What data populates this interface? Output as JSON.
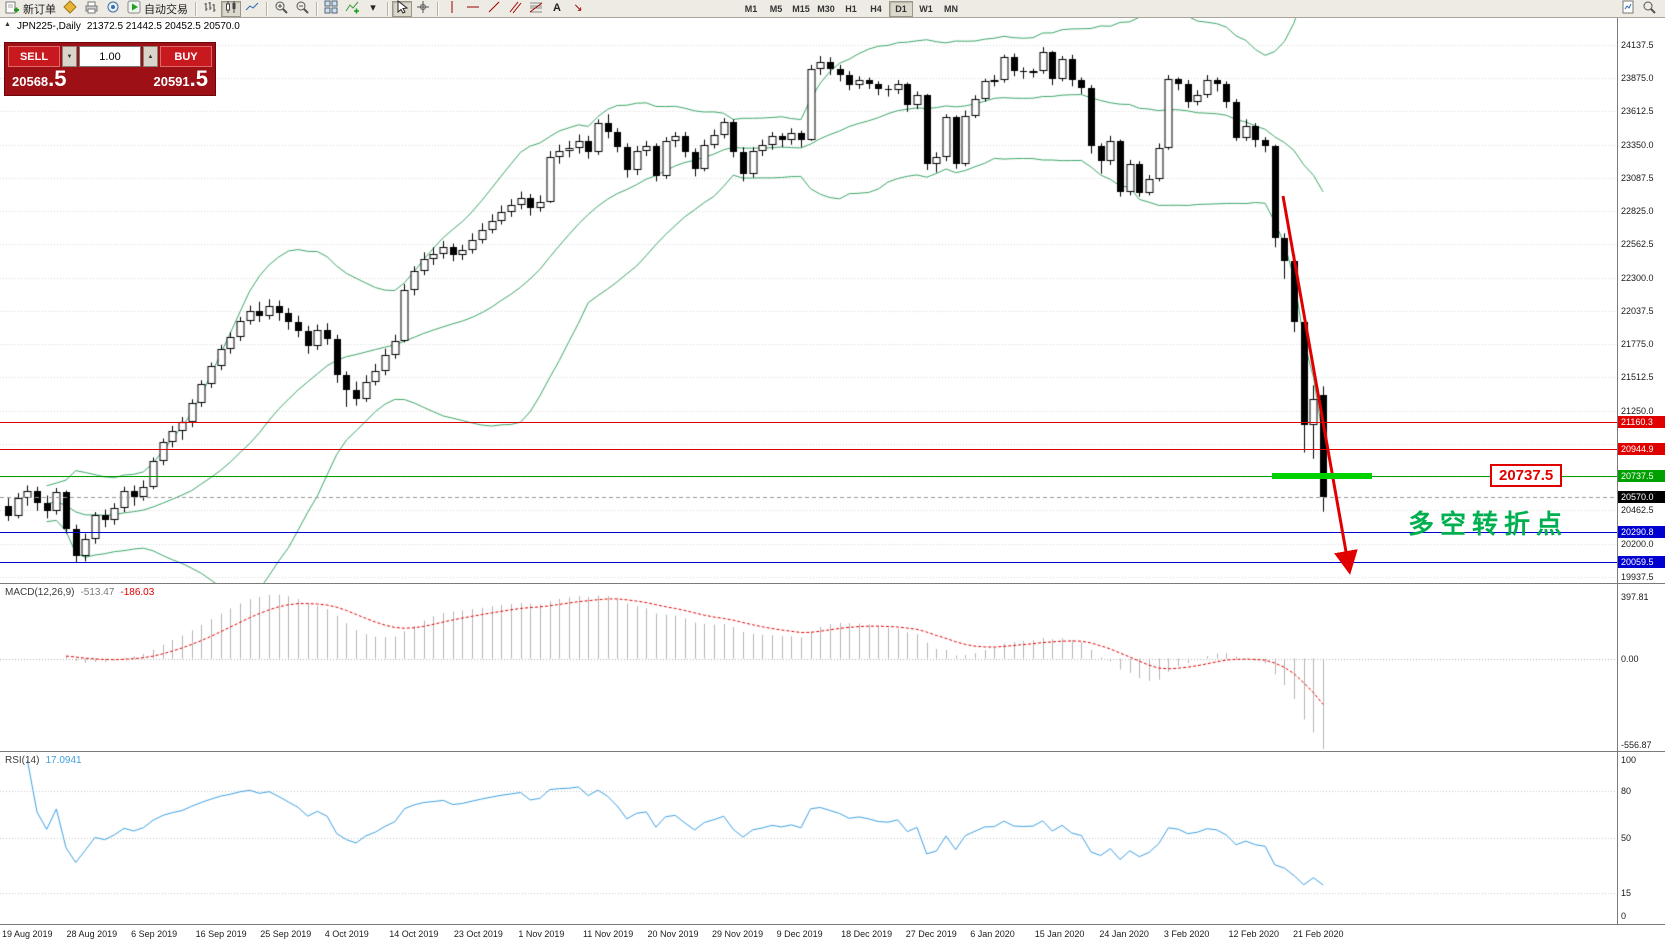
{
  "toolbar": {
    "new_order_label": "新订单",
    "autotrading_label": "自动交易",
    "timeframes": [
      "M1",
      "M5",
      "M15",
      "M30",
      "H1",
      "H4",
      "D1",
      "W1",
      "MN"
    ],
    "active_timeframe": "D1"
  },
  "trade_panel": {
    "sell_label": "SELL",
    "buy_label": "BUY",
    "volume": "1.00",
    "sell_price_main": "20568",
    "sell_price_frac": ".5",
    "buy_price_main": "20591",
    "buy_price_frac": ".5"
  },
  "chart": {
    "symbol_label": "JPN225-,Daily",
    "ohlc_label": "21372.5 21442.5 20452.5 20570.0",
    "current_price": "20570.0",
    "price_tag_label": "20737.5",
    "pivot_price": 20737.5,
    "annotation": "多空转折点",
    "scale_labels": [
      "24137.5",
      "23875.0",
      "23612.5",
      "23350.0",
      "23087.5",
      "22825.0",
      "22562.5",
      "22300.0",
      "22037.5",
      "21775.0",
      "21512.5",
      "21250.0",
      "20462.5",
      "20200.0",
      "19937.5"
    ],
    "level_tags": [
      {
        "label": "21160.3",
        "price": 21160.3,
        "color": "#e00000"
      },
      {
        "label": "20944.9",
        "price": 20944.9,
        "color": "#e00000"
      },
      {
        "label": "20737.5",
        "price": 20737.5,
        "color": "#00a000"
      },
      {
        "label": "20570.0",
        "price": 20570.0,
        "color": "#000000"
      },
      {
        "label": "20290.8",
        "price": 20290.8,
        "color": "#0000d0"
      },
      {
        "label": "20059.5",
        "price": 20059.5,
        "color": "#0000d0"
      }
    ],
    "hlines": [
      {
        "price": 21160.3,
        "color": "#e00000"
      },
      {
        "price": 20944.9,
        "color": "#e00000"
      },
      {
        "price": 20737.5,
        "color": "#00a000"
      },
      {
        "price": 20290.8,
        "color": "#0000d0"
      },
      {
        "price": 20059.5,
        "color": "#0000d0"
      }
    ]
  },
  "macd": {
    "label": "MACD(12,26,9)",
    "value_main": "-513.47",
    "value_signal": "-186.03",
    "scale": [
      "397.81",
      "0.00",
      "-556.87"
    ]
  },
  "rsi": {
    "label": "RSI(14)",
    "value": "17.0941",
    "scale": [
      "100",
      "80",
      "50",
      "15",
      "0"
    ],
    "levels": [
      80,
      50,
      15
    ]
  },
  "dates": [
    "19 Aug 2019",
    "28 Aug 2019",
    "6 Sep 2019",
    "16 Sep 2019",
    "25 Sep 2019",
    "4 Oct 2019",
    "14 Oct 2019",
    "23 Oct 2019",
    "1 Nov 2019",
    "11 Nov 2019",
    "20 Nov 2019",
    "29 Nov 2019",
    "9 Dec 2019",
    "18 Dec 2019",
    "27 Dec 2019",
    "6 Jan 2020",
    "15 Jan 2020",
    "24 Jan 2020",
    "3 Feb 2020",
    "12 Feb 2020",
    "21 Feb 2020"
  ],
  "colors": {
    "up_candle": "#ffffff",
    "down_candle": "#000000",
    "bollinger": "#3da568",
    "grid": "#d8d8d8",
    "macd_hist": "#b4b4b4",
    "macd_signal": "#e00000",
    "rsi_line": "#3fa0e0",
    "arrow": "#e00000",
    "segment": "#00d200",
    "annotation_color": "#00b050",
    "current_price_line": "#999999"
  },
  "chart_data": {
    "type": "candlestick",
    "symbol": "JPN225-",
    "timeframe": "Daily",
    "price_range": [
      19890,
      24350
    ],
    "grid_levels": [
      24137.5,
      23875.0,
      23612.5,
      23350.0,
      23087.5,
      22825.0,
      22562.5,
      22300.0,
      22037.5,
      21775.0,
      21512.5,
      21250.0,
      20987.5,
      20725.0,
      20462.5,
      20200.0,
      19937.5
    ],
    "indicators": {
      "bollinger": {
        "period": 20,
        "deviation": 2
      },
      "macd": {
        "fast": 12,
        "slow": 26,
        "signal": 9
      },
      "rsi": {
        "period": 14
      }
    },
    "candles": [
      [
        20500,
        20560,
        20380,
        20420
      ],
      [
        20420,
        20600,
        20400,
        20560
      ],
      [
        20560,
        20660,
        20500,
        20620
      ],
      [
        20620,
        20650,
        20460,
        20520
      ],
      [
        20520,
        20580,
        20400,
        20460
      ],
      [
        20460,
        20640,
        20430,
        20610
      ],
      [
        20610,
        20620,
        20280,
        20320
      ],
      [
        20320,
        20350,
        20050,
        20100
      ],
      [
        20100,
        20280,
        20060,
        20240
      ],
      [
        20240,
        20450,
        20200,
        20430
      ],
      [
        20430,
        20470,
        20330,
        20390
      ],
      [
        20390,
        20520,
        20350,
        20480
      ],
      [
        20480,
        20650,
        20450,
        20620
      ],
      [
        20620,
        20660,
        20500,
        20570
      ],
      [
        20570,
        20700,
        20540,
        20650
      ],
      [
        20650,
        20880,
        20630,
        20850
      ],
      [
        20850,
        21030,
        20820,
        21000
      ],
      [
        21000,
        21130,
        20960,
        21090
      ],
      [
        21090,
        21200,
        21020,
        21160
      ],
      [
        21160,
        21340,
        21120,
        21310
      ],
      [
        21310,
        21490,
        21280,
        21460
      ],
      [
        21460,
        21630,
        21430,
        21600
      ],
      [
        21600,
        21770,
        21570,
        21740
      ],
      [
        21740,
        21870,
        21700,
        21830
      ],
      [
        21830,
        21990,
        21800,
        21960
      ],
      [
        21960,
        22080,
        21930,
        22040
      ],
      [
        22040,
        22110,
        21950,
        22000
      ],
      [
        22000,
        22130,
        21970,
        22080
      ],
      [
        22080,
        22120,
        21960,
        22020
      ],
      [
        22020,
        22060,
        21890,
        21950
      ],
      [
        21950,
        22000,
        21830,
        21880
      ],
      [
        21880,
        21920,
        21700,
        21760
      ],
      [
        21760,
        21930,
        21730,
        21890
      ],
      [
        21890,
        21940,
        21770,
        21820
      ],
      [
        21820,
        21850,
        21470,
        21530
      ],
      [
        21530,
        21560,
        21280,
        21410
      ],
      [
        21410,
        21480,
        21290,
        21340
      ],
      [
        21340,
        21530,
        21320,
        21480
      ],
      [
        21480,
        21620,
        21450,
        21560
      ],
      [
        21560,
        21740,
        21530,
        21690
      ],
      [
        21690,
        21850,
        21660,
        21800
      ],
      [
        21800,
        22250,
        21790,
        22200
      ],
      [
        22200,
        22390,
        22160,
        22350
      ],
      [
        22350,
        22500,
        22320,
        22450
      ],
      [
        22450,
        22540,
        22400,
        22490
      ],
      [
        22490,
        22590,
        22450,
        22540
      ],
      [
        22540,
        22570,
        22430,
        22480
      ],
      [
        22480,
        22560,
        22440,
        22520
      ],
      [
        22520,
        22650,
        22490,
        22600
      ],
      [
        22600,
        22730,
        22570,
        22680
      ],
      [
        22680,
        22800,
        22650,
        22750
      ],
      [
        22750,
        22870,
        22720,
        22820
      ],
      [
        22820,
        22920,
        22780,
        22870
      ],
      [
        22870,
        22980,
        22840,
        22930
      ],
      [
        22930,
        22960,
        22790,
        22850
      ],
      [
        22850,
        22950,
        22820,
        22900
      ],
      [
        22900,
        23300,
        22890,
        23250
      ],
      [
        23250,
        23350,
        23200,
        23300
      ],
      [
        23300,
        23380,
        23250,
        23320
      ],
      [
        23320,
        23430,
        23280,
        23380
      ],
      [
        23380,
        23420,
        23240,
        23290
      ],
      [
        23290,
        23550,
        23270,
        23520
      ],
      [
        23520,
        23590,
        23400,
        23450
      ],
      [
        23450,
        23480,
        23290,
        23330
      ],
      [
        23330,
        23360,
        23090,
        23150
      ],
      [
        23150,
        23340,
        23110,
        23300
      ],
      [
        23300,
        23380,
        23260,
        23340
      ],
      [
        23340,
        23360,
        23060,
        23100
      ],
      [
        23100,
        23410,
        23080,
        23380
      ],
      [
        23380,
        23450,
        23330,
        23420
      ],
      [
        23420,
        23450,
        23250,
        23290
      ],
      [
        23290,
        23320,
        23100,
        23160
      ],
      [
        23160,
        23390,
        23140,
        23350
      ],
      [
        23350,
        23470,
        23320,
        23430
      ],
      [
        23430,
        23560,
        23400,
        23530
      ],
      [
        23530,
        23550,
        23250,
        23290
      ],
      [
        23290,
        23330,
        23060,
        23120
      ],
      [
        23120,
        23330,
        23090,
        23300
      ],
      [
        23300,
        23390,
        23260,
        23350
      ],
      [
        23350,
        23450,
        23310,
        23420
      ],
      [
        23420,
        23440,
        23330,
        23390
      ],
      [
        23390,
        23480,
        23350,
        23440
      ],
      [
        23440,
        23460,
        23330,
        23390
      ],
      [
        23390,
        23980,
        23380,
        23950
      ],
      [
        23950,
        24050,
        23900,
        24000
      ],
      [
        24000,
        24040,
        23900,
        23950
      ],
      [
        23950,
        23980,
        23850,
        23900
      ],
      [
        23900,
        23930,
        23780,
        23820
      ],
      [
        23820,
        23890,
        23790,
        23860
      ],
      [
        23860,
        23880,
        23790,
        23830
      ],
      [
        23830,
        23850,
        23740,
        23790
      ],
      [
        23790,
        23820,
        23730,
        23780
      ],
      [
        23780,
        23860,
        23750,
        23830
      ],
      [
        23830,
        23840,
        23610,
        23660
      ],
      [
        23660,
        23770,
        23630,
        23740
      ],
      [
        23740,
        23750,
        23150,
        23200
      ],
      [
        23200,
        23290,
        23130,
        23250
      ],
      [
        23250,
        23590,
        23220,
        23570
      ],
      [
        23570,
        23580,
        23160,
        23200
      ],
      [
        23200,
        23620,
        23180,
        23575
      ],
      [
        23575,
        23740,
        23560,
        23710
      ],
      [
        23710,
        23870,
        23690,
        23850
      ],
      [
        23850,
        23900,
        23810,
        23860
      ],
      [
        23860,
        24060,
        23840,
        24040
      ],
      [
        24040,
        24070,
        23890,
        23930
      ],
      [
        23930,
        23960,
        23870,
        23920
      ],
      [
        23920,
        23950,
        23880,
        23930
      ],
      [
        23930,
        24120,
        23910,
        24080
      ],
      [
        24080,
        24090,
        23820,
        23870
      ],
      [
        23870,
        24050,
        23850,
        24030
      ],
      [
        24030,
        24060,
        23810,
        23860
      ],
      [
        23860,
        23880,
        23750,
        23800
      ],
      [
        23800,
        23820,
        23280,
        23340
      ],
      [
        23340,
        23360,
        23120,
        23220
      ],
      [
        23220,
        23420,
        23190,
        23380
      ],
      [
        23380,
        23390,
        22940,
        22980
      ],
      [
        22980,
        23230,
        22950,
        23200
      ],
      [
        23200,
        23220,
        22940,
        22970
      ],
      [
        22970,
        23110,
        22950,
        23080
      ],
      [
        23080,
        23360,
        23060,
        23320
      ],
      [
        23320,
        23900,
        23310,
        23870
      ],
      [
        23870,
        23880,
        23780,
        23830
      ],
      [
        23830,
        23860,
        23640,
        23690
      ],
      [
        23690,
        23780,
        23660,
        23740
      ],
      [
        23740,
        23900,
        23720,
        23860
      ],
      [
        23860,
        23880,
        23770,
        23830
      ],
      [
        23830,
        23850,
        23640,
        23690
      ],
      [
        23690,
        23710,
        23380,
        23400
      ],
      [
        23400,
        23550,
        23380,
        23500
      ],
      [
        23500,
        23520,
        23330,
        23390
      ],
      [
        23390,
        23410,
        23290,
        23340
      ],
      [
        23340,
        23350,
        22540,
        22610
      ],
      [
        22610,
        22650,
        22290,
        22430
      ],
      [
        22430,
        22480,
        21870,
        21950
      ],
      [
        21950,
        21970,
        20920,
        21140
      ],
      [
        21140,
        21450,
        20870,
        21340
      ],
      [
        21372.5,
        21442.5,
        20452.5,
        20570
      ]
    ]
  }
}
